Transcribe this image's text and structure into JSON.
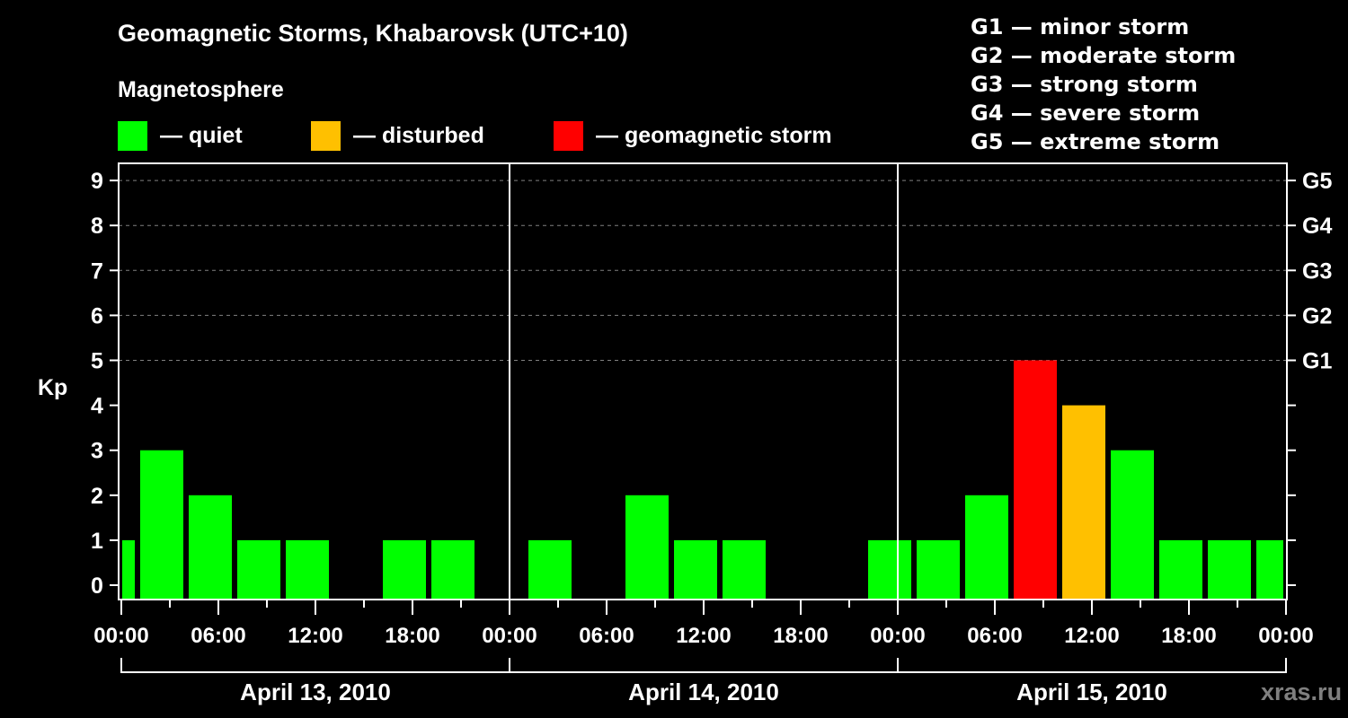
{
  "header": {
    "title": "Geomagnetic Storms, Khabarovsk (UTC+10)",
    "subtitle": "Magnetosphere",
    "legend": [
      {
        "label": "— quiet",
        "color": "#00ff00"
      },
      {
        "label": "— disturbed",
        "color": "#ffc000"
      },
      {
        "label": "— geomagnetic storm",
        "color": "#ff0000"
      }
    ],
    "g_scale": [
      "G1 — minor storm",
      "G2 — moderate storm",
      "G3 — strong storm",
      "G4 — severe storm",
      "G5 — extreme storm"
    ]
  },
  "watermark": "xras.ru",
  "colors": {
    "quiet": "#00ff00",
    "disturbed": "#ffc000",
    "storm": "#ff0000",
    "background": "#000000",
    "axis": "#ffffff",
    "grid": "#808080"
  },
  "chart_data": {
    "type": "bar",
    "title": "Geomagnetic Storms, Khabarovsk (UTC+10)",
    "ylabel": "Kp",
    "xlabel": "",
    "ylim": [
      0,
      9
    ],
    "yticks": [
      0,
      1,
      2,
      3,
      4,
      5,
      6,
      7,
      8,
      9
    ],
    "right_axis_labels": [
      {
        "kp": 5,
        "label": "G1"
      },
      {
        "kp": 6,
        "label": "G2"
      },
      {
        "kp": 7,
        "label": "G3"
      },
      {
        "kp": 8,
        "label": "G4"
      },
      {
        "kp": 9,
        "label": "G5"
      }
    ],
    "grid": "dashed horizontal at Kp 5-9",
    "xtick_labels": [
      "00:00",
      "06:00",
      "12:00",
      "18:00",
      "00:00",
      "06:00",
      "12:00",
      "18:00",
      "00:00",
      "06:00",
      "12:00",
      "18:00",
      "00:00"
    ],
    "days": [
      "April 13, 2010",
      "April 14, 2010",
      "April 15, 2010"
    ],
    "leading_partial_bar": {
      "value": 1,
      "status": "quiet"
    },
    "bars": [
      {
        "day": "April 13, 2010",
        "value": 3,
        "status": "quiet"
      },
      {
        "day": "April 13, 2010",
        "value": 2,
        "status": "quiet"
      },
      {
        "day": "April 13, 2010",
        "value": 1,
        "status": "quiet"
      },
      {
        "day": "April 13, 2010",
        "value": 1,
        "status": "quiet"
      },
      {
        "day": "April 13, 2010",
        "value": 0,
        "status": "quiet"
      },
      {
        "day": "April 13, 2010",
        "value": 1,
        "status": "quiet"
      },
      {
        "day": "April 13, 2010",
        "value": 1,
        "status": "quiet"
      },
      {
        "day": "April 13, 2010",
        "value": 0,
        "status": "quiet"
      },
      {
        "day": "April 14, 2010",
        "value": 1,
        "status": "quiet"
      },
      {
        "day": "April 14, 2010",
        "value": 0,
        "status": "quiet"
      },
      {
        "day": "April 14, 2010",
        "value": 2,
        "status": "quiet"
      },
      {
        "day": "April 14, 2010",
        "value": 1,
        "status": "quiet"
      },
      {
        "day": "April 14, 2010",
        "value": 1,
        "status": "quiet"
      },
      {
        "day": "April 14, 2010",
        "value": 0,
        "status": "quiet"
      },
      {
        "day": "April 14, 2010",
        "value": 0,
        "status": "quiet"
      },
      {
        "day": "April 14, 2010",
        "value": 1,
        "status": "quiet"
      },
      {
        "day": "April 15, 2010",
        "value": 1,
        "status": "quiet"
      },
      {
        "day": "April 15, 2010",
        "value": 2,
        "status": "quiet"
      },
      {
        "day": "April 15, 2010",
        "value": 5,
        "status": "storm"
      },
      {
        "day": "April 15, 2010",
        "value": 4,
        "status": "disturbed"
      },
      {
        "day": "April 15, 2010",
        "value": 3,
        "status": "quiet"
      },
      {
        "day": "April 15, 2010",
        "value": 1,
        "status": "quiet"
      },
      {
        "day": "April 15, 2010",
        "value": 1,
        "status": "quiet"
      },
      {
        "day": "April 15, 2010",
        "value": 1,
        "status": "quiet"
      }
    ],
    "values": [
      3,
      2,
      1,
      1,
      0,
      1,
      1,
      0,
      1,
      0,
      2,
      1,
      1,
      0,
      0,
      1,
      1,
      2,
      5,
      4,
      3,
      1,
      1,
      1
    ]
  }
}
